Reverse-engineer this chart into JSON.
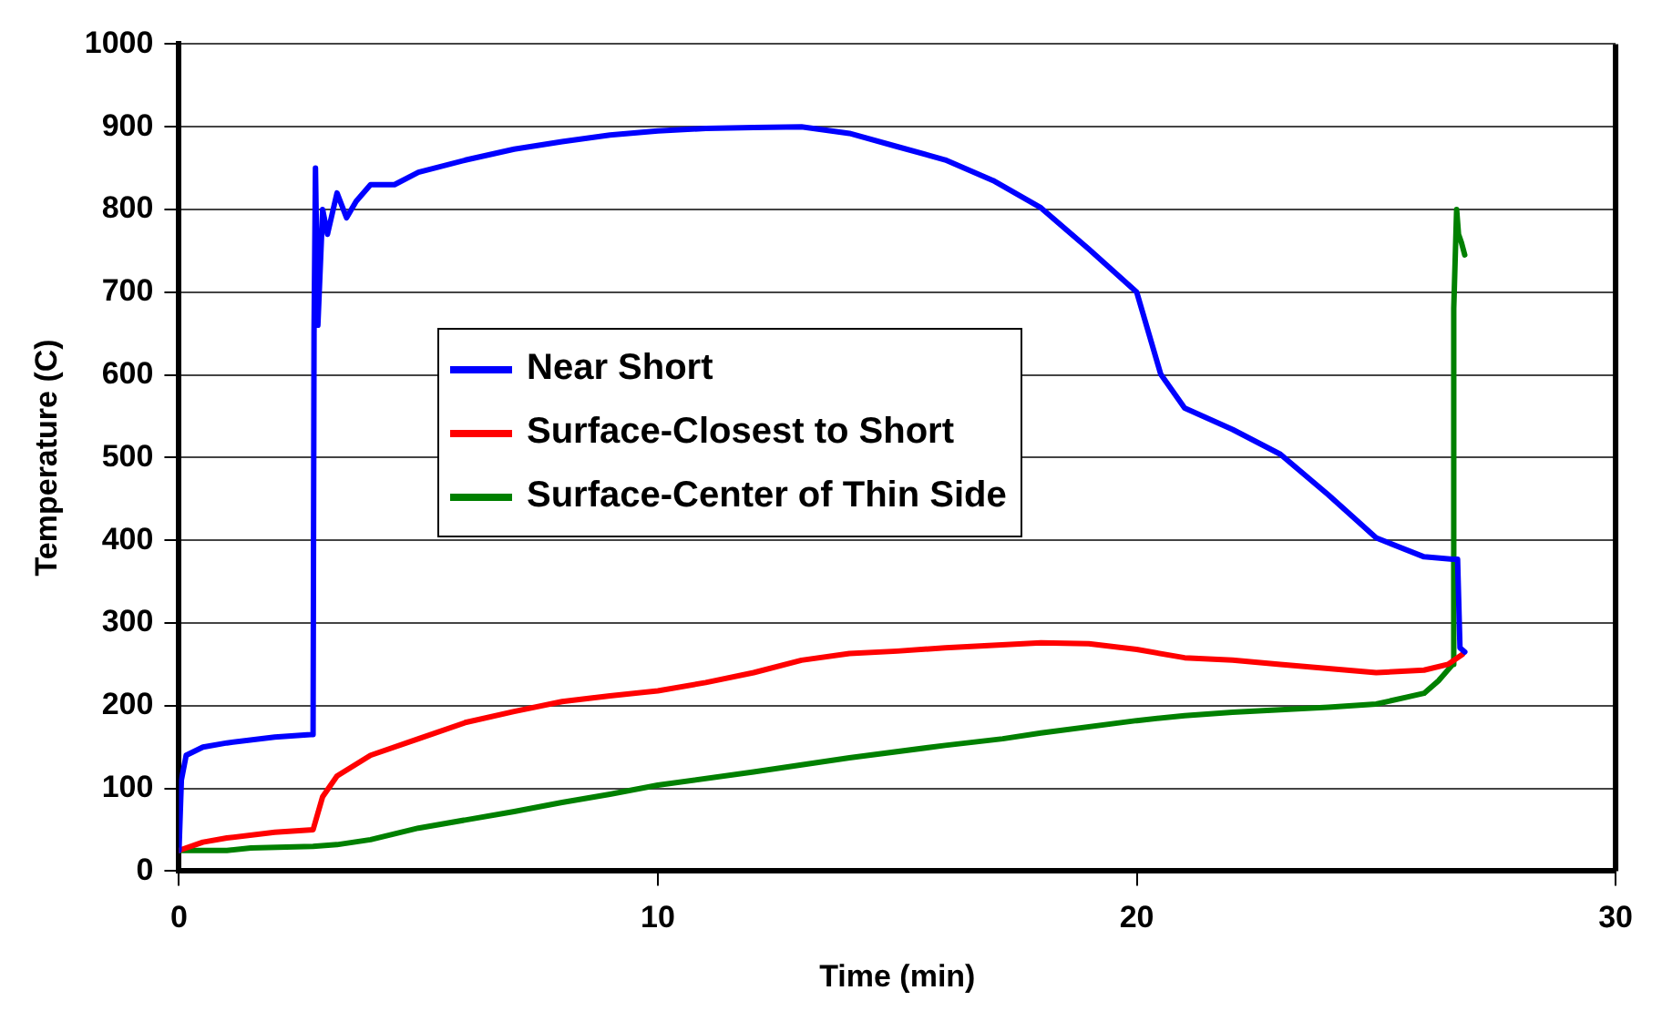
{
  "chart_data": {
    "type": "line",
    "xlabel": "Time (min)",
    "ylabel": "Temperature (C)",
    "xlim": [
      0,
      30
    ],
    "xticks": [
      0,
      10,
      20,
      30
    ],
    "ylim": [
      0,
      1000
    ],
    "yticks": [
      0,
      100,
      200,
      300,
      400,
      500,
      600,
      700,
      800,
      900,
      1000
    ],
    "grid": "y",
    "legend": "left",
    "marker": "none",
    "line_style": "solid",
    "series": [
      {
        "name": "Near Short",
        "color": "#0000ff",
        "x": [
          0,
          0.05,
          0.15,
          0.5,
          1,
          2,
          2.75,
          2.8,
          2.82,
          2.85,
          2.9,
          3,
          3.1,
          3.3,
          3.5,
          3.7,
          4,
          4.5,
          5,
          6,
          7,
          8,
          9,
          10,
          11,
          12,
          13,
          14,
          15,
          16,
          17,
          18,
          19,
          20,
          20.5,
          21,
          22,
          23,
          24,
          25,
          26,
          26.6,
          26.7,
          26.75,
          26.85
        ],
        "values": [
          25,
          110,
          140,
          150,
          155,
          162,
          165,
          165,
          650,
          850,
          660,
          800,
          770,
          820,
          790,
          810,
          830,
          830,
          845,
          860,
          873,
          882,
          890,
          895,
          898,
          899,
          900,
          892,
          876,
          860,
          835,
          802,
          752,
          700,
          601,
          560,
          534,
          504,
          455,
          403,
          380,
          377,
          377,
          270,
          265
        ]
      },
      {
        "name": "Surface-Closest to Short",
        "color": "#ff0000",
        "x": [
          0,
          0.5,
          1,
          2,
          2.8,
          3,
          3.3,
          4,
          5,
          6,
          7,
          8,
          9,
          10,
          11,
          12,
          13,
          14,
          15,
          16,
          17,
          18,
          19,
          20,
          21,
          22,
          23,
          24,
          25,
          26,
          26.5,
          26.8
        ],
        "values": [
          25,
          35,
          40,
          47,
          50,
          90,
          115,
          140,
          160,
          180,
          193,
          205,
          212,
          218,
          228,
          240,
          255,
          263,
          266,
          270,
          273,
          276,
          275,
          268,
          258,
          255,
          250,
          245,
          240,
          243,
          250,
          262
        ]
      },
      {
        "name": "Surface-Center of Thin Side",
        "color": "#008000",
        "x": [
          0,
          1,
          1.5,
          2.8,
          3.3,
          4,
          5,
          6,
          7,
          8,
          9,
          10,
          12,
          14,
          16,
          17.2,
          18,
          20,
          21,
          22,
          23,
          24,
          25,
          26,
          26.3,
          26.6,
          26.62,
          26.68,
          26.72,
          26.78,
          26.85
        ],
        "values": [
          25,
          25,
          28,
          30,
          32,
          38,
          52,
          62,
          72,
          83,
          93,
          104,
          120,
          137,
          152,
          160,
          167,
          182,
          188,
          192,
          195,
          198,
          202,
          215,
          230,
          250,
          680,
          800,
          770,
          760,
          745
        ]
      }
    ]
  }
}
